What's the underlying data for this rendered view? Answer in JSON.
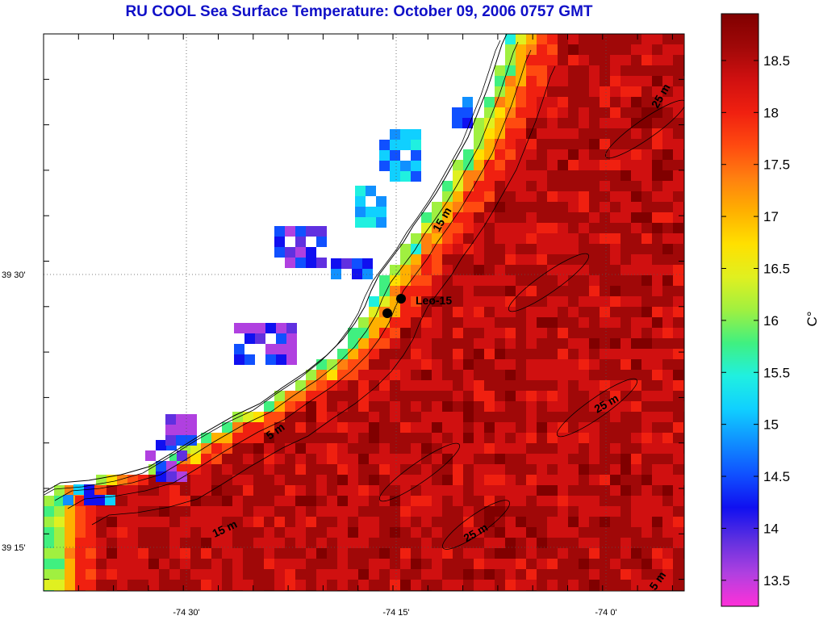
{
  "title": "RU COOL  Sea Surface Temperature:  October 09, 2006 0757 GMT",
  "axes": {
    "x_labels": [
      "-74 30'",
      "-74 15'",
      "-74 0'"
    ],
    "y_labels": [
      "39 30'",
      "39 15'"
    ]
  },
  "colorbar": {
    "unit": "C°",
    "ticks": [
      "18.5",
      "18",
      "17.5",
      "17",
      "16.5",
      "16",
      "15.5",
      "15",
      "14.5",
      "14",
      "13.5"
    ],
    "colors": [
      "#ff30d8",
      "#b040e0",
      "#6030e0",
      "#1010f0",
      "#1050ff",
      "#1090ff",
      "#10d0ff",
      "#20f0e0",
      "#40f080",
      "#a0f040",
      "#e0f020",
      "#ffe000",
      "#ffb000",
      "#ff8010",
      "#ff4a10",
      "#f02010",
      "#d01010",
      "#a00808",
      "#800000"
    ],
    "range": [
      13.25,
      18.95
    ]
  },
  "station": {
    "label": "Leo-15"
  },
  "depth_labels": [
    "15 m",
    "5 m",
    "15 m",
    "25 m",
    "25 m",
    "25 m",
    "5 m"
  ],
  "colors": {
    "title": "#1010c8",
    "land": "#ffffff",
    "coastline": "#000000"
  }
}
